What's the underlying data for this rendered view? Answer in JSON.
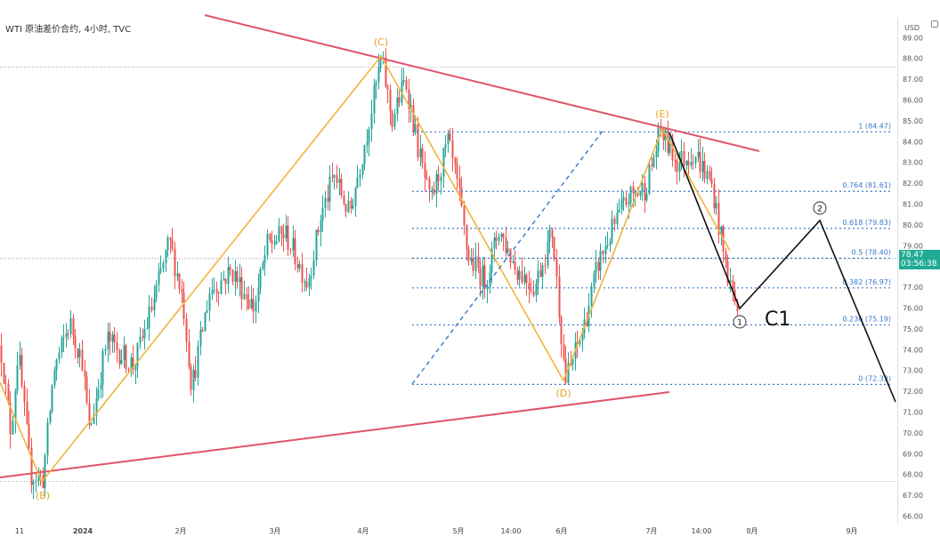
{
  "chart_data": {
    "type": "candlestick",
    "title": "WTI 原油差价合约, 4小时, TVC",
    "currency": "USD",
    "ylim": [
      66.0,
      89.5
    ],
    "y_ticks": [
      "66.00",
      "67.00",
      "68.00",
      "69.00",
      "70.00",
      "71.00",
      "72.00",
      "73.00",
      "74.00",
      "75.00",
      "76.00",
      "77.00",
      "78.00",
      "79.00",
      "80.00",
      "81.00",
      "82.00",
      "83.00",
      "84.00",
      "85.00",
      "86.00",
      "87.00",
      "88.00",
      "89.00"
    ],
    "x_ticks": [
      "11",
      "2024",
      "2月",
      "3月",
      "4月",
      "5月",
      "14:00",
      "6月",
      "7月",
      "14:00",
      "8月",
      "9月"
    ],
    "current_price": "78.47",
    "countdown": "03:56:38",
    "fib_levels": [
      {
        "ratio": "1",
        "value": 84.47,
        "label": "1 (84.47)"
      },
      {
        "ratio": "0.764",
        "value": 81.61,
        "label": "0.764 (81.61)"
      },
      {
        "ratio": "0.618",
        "value": 79.83,
        "label": "0.618 (79.83)"
      },
      {
        "ratio": "0.5",
        "value": 78.4,
        "label": "0.5 (78.40)"
      },
      {
        "ratio": "0.382",
        "value": 76.97,
        "label": "0.382 (76.97)"
      },
      {
        "ratio": "0.236",
        "value": 75.19,
        "label": "0.236 (75.19)"
      },
      {
        "ratio": "0",
        "value": 72.33,
        "label": "0 (72.33)"
      }
    ],
    "wave_labels": [
      "(B)",
      "(C)",
      "(D)",
      "(E)"
    ],
    "projection_labels": {
      "wave1": "1",
      "wave2": "2",
      "c1": "C1"
    },
    "colors": {
      "up": "#26a69a",
      "down": "#ef5350",
      "trend": "#e0556a",
      "wave": "#f0b43c",
      "fib": "#3a78c8",
      "projection": "#111111",
      "wave_label": "#e8a020"
    }
  }
}
